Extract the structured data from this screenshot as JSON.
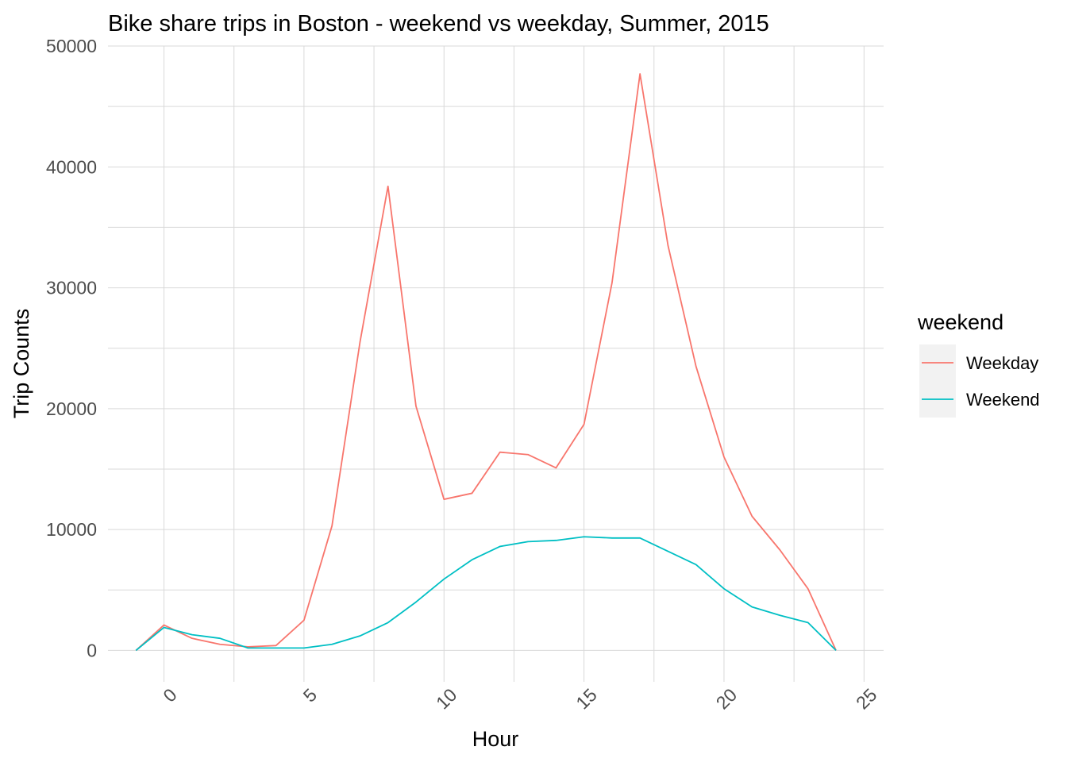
{
  "chart_data": {
    "type": "line",
    "title": "Bike share trips in Boston - weekend vs weekday, Summer, 2015",
    "xlabel": "Hour",
    "ylabel": "Trip Counts",
    "xlim": [
      -2,
      25.7
    ],
    "ylim": [
      -2600,
      50000
    ],
    "x_ticks": [
      0,
      5,
      10,
      15,
      20,
      25
    ],
    "x_tick_labels": [
      "0",
      "5",
      "10",
      "15",
      "20",
      "25"
    ],
    "y_ticks": [
      0,
      10000,
      20000,
      30000,
      40000,
      50000
    ],
    "y_tick_labels": [
      "0",
      "10000",
      "20000",
      "30000",
      "40000",
      "50000"
    ],
    "grid": true,
    "legend": {
      "title": "weekend",
      "position": "right"
    },
    "series": [
      {
        "name": "Weekday",
        "color": "#F8766D",
        "x": [
          -1,
          0,
          1,
          2,
          3,
          4,
          5,
          6,
          7,
          8,
          9,
          10,
          11,
          12,
          13,
          14,
          15,
          16,
          17,
          18,
          19,
          20,
          21,
          22,
          23,
          24
        ],
        "y": [
          0,
          2100,
          1000,
          500,
          300,
          400,
          2500,
          10300,
          25500,
          38400,
          20200,
          12500,
          13000,
          16400,
          16200,
          15100,
          18700,
          30400,
          47700,
          33500,
          23500,
          16000,
          11100,
          8300,
          5100,
          0
        ]
      },
      {
        "name": "Weekend",
        "color": "#00BFC4",
        "x": [
          -1,
          0,
          1,
          2,
          3,
          4,
          5,
          6,
          7,
          8,
          9,
          10,
          11,
          12,
          13,
          14,
          15,
          16,
          17,
          18,
          19,
          20,
          21,
          22,
          23,
          24
        ],
        "y": [
          0,
          1900,
          1300,
          1000,
          200,
          200,
          200,
          500,
          1200,
          2300,
          4000,
          5900,
          7500,
          8600,
          9000,
          9100,
          9400,
          9300,
          9300,
          8200,
          7100,
          5100,
          3600,
          2900,
          2300,
          0
        ]
      }
    ]
  }
}
